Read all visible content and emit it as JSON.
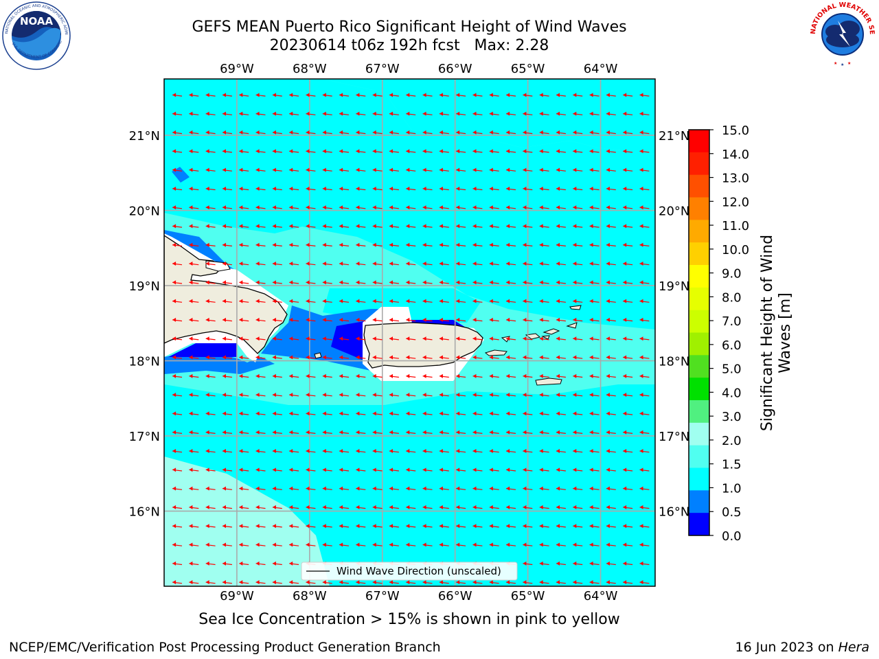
{
  "title": {
    "line1": "GEFS MEAN Puerto Rico Significant Height of Wind Waves",
    "line2": "20230614 t06z 192h fcst   Max: 2.28"
  },
  "map": {
    "lon_min": -70.0,
    "lon_max": -63.25,
    "lat_min": 15.0,
    "lat_max": 21.75,
    "lon_ticks": [
      "69°W",
      "68°W",
      "67°W",
      "66°W",
      "65°W",
      "64°W"
    ],
    "lon_tick_values": [
      -69,
      -68,
      -67,
      -66,
      -65,
      -64
    ],
    "lat_ticks": [
      "21°N",
      "20°N",
      "19°N",
      "18°N",
      "17°N",
      "16°N"
    ],
    "lat_tick_values": [
      21,
      20,
      19,
      18,
      17,
      16
    ],
    "ocean_color": "#00ffff",
    "land_color": "#efedde",
    "arrow_color": "#ff0000",
    "direction_deg": "WNW"
  },
  "legend": {
    "label": "Wind Wave Direction (unscaled)"
  },
  "colorbar": {
    "label": "Significant Height of Wind Waves [m]",
    "label_line1": "Significant Height of Wind",
    "label_line2": "Waves [m]",
    "ticks": [
      "15.0",
      "14.0",
      "13.0",
      "12.0",
      "11.0",
      "10.0",
      "9.0",
      "8.0",
      "7.0",
      "6.0",
      "5.0",
      "4.0",
      "3.0",
      "2.0",
      "1.5",
      "1.0",
      "0.5",
      "0.0"
    ],
    "colors": [
      "#ff0000",
      "#ff2000",
      "#ff5000",
      "#ff8000",
      "#ffaa00",
      "#ffd000",
      "#ffff00",
      "#e6ff00",
      "#ccff00",
      "#a0f000",
      "#50e020",
      "#00e000",
      "#50f080",
      "#a0fff0",
      "#50fff0",
      "#00ffff",
      "#0080ff",
      "#0000ff"
    ]
  },
  "sea_ice_note": "Sea Ice Concentration > 15% is shown in pink to yellow",
  "footer": {
    "left": "NCEP/EMC/Verification Post Processing Product Generation Branch",
    "right_prefix": "16 Jun 2023 on ",
    "right_host": "Hera"
  },
  "logos": {
    "noaa": "NOAA",
    "noaa_ring": "NATIONAL OCEANIC AND ATMOSPHERIC ADMINISTRATION",
    "noaa_bottom": "U.S. DEPARTMENT OF COMMERCE",
    "nws_ring": "NATIONAL WEATHER SERVICE"
  }
}
